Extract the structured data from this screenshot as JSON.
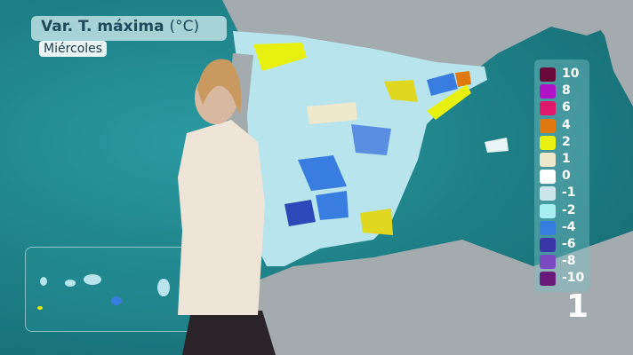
{
  "title": {
    "main": "Var. T. máxima",
    "unit": "(°C)",
    "day": "Miércoles"
  },
  "legend": {
    "items": [
      {
        "label": "10",
        "color": "#6a0a3a"
      },
      {
        "label": "8",
        "color": "#b012c8"
      },
      {
        "label": "6",
        "color": "#e0186c"
      },
      {
        "label": "4",
        "color": "#e07a10"
      },
      {
        "label": "2",
        "color": "#e8f010"
      },
      {
        "label": "1",
        "color": "#efe8cc"
      },
      {
        "label": "0",
        "color": "#ffffff"
      },
      {
        "label": "-1",
        "color": "#cde6ec"
      },
      {
        "label": "-2",
        "color": "#a6eef0"
      },
      {
        "label": "-4",
        "color": "#3a7de0"
      },
      {
        "label": "-6",
        "color": "#3a36a8"
      },
      {
        "label": "-8",
        "color": "#7a4ac0"
      },
      {
        "label": "-10",
        "color": "#6a1a7a"
      }
    ]
  },
  "page_number": "1",
  "colors": {
    "sea": "#1f7f86",
    "land": "#9aa3a6"
  }
}
